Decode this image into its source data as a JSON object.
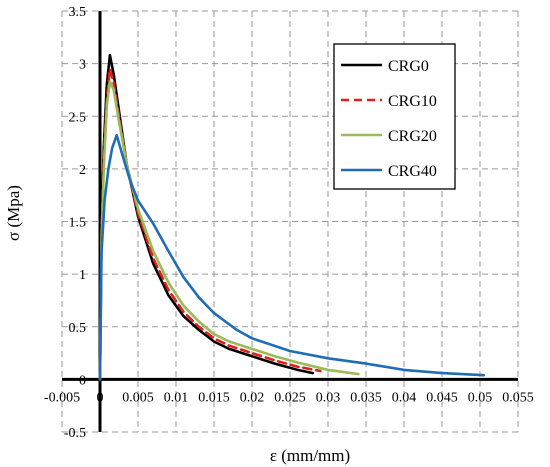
{
  "chart_data": {
    "type": "line",
    "xlabel": "ε (mm/mm)",
    "ylabel": "σ (Mpa)",
    "xlim": [
      -0.005,
      0.055
    ],
    "ylim": [
      -0.5,
      3.5
    ],
    "xticks": [
      -0.005,
      0,
      0.005,
      0.01,
      0.015,
      0.02,
      0.025,
      0.03,
      0.035,
      0.04,
      0.045,
      0.05,
      0.055
    ],
    "xtick_labels": [
      "-0.005",
      "0",
      "0.005",
      "0.01",
      "0.015",
      "0.02",
      "0.025",
      "0.03",
      "0.035",
      "0.04",
      "0.045",
      "0.05",
      "0.055"
    ],
    "yticks": [
      -0.5,
      0,
      0.5,
      1,
      1.5,
      2,
      2.5,
      3,
      3.5
    ],
    "ytick_labels": [
      "-0.5",
      "0",
      "0.5",
      "1",
      "1.5",
      "2",
      "2.5",
      "3",
      "3.5"
    ],
    "grid": true,
    "legend_position": "top-right",
    "series": [
      {
        "name": "CRG0",
        "color": "#000000",
        "dash": "solid",
        "points": [
          [
            0,
            0
          ],
          [
            0.0002,
            1.4
          ],
          [
            0.0005,
            2.2
          ],
          [
            0.0009,
            2.8
          ],
          [
            0.0013,
            3.08
          ],
          [
            0.0018,
            2.9
          ],
          [
            0.0025,
            2.55
          ],
          [
            0.0035,
            2.05
          ],
          [
            0.005,
            1.55
          ],
          [
            0.007,
            1.1
          ],
          [
            0.009,
            0.8
          ],
          [
            0.011,
            0.6
          ],
          [
            0.013,
            0.47
          ],
          [
            0.015,
            0.36
          ],
          [
            0.017,
            0.29
          ],
          [
            0.02,
            0.22
          ],
          [
            0.023,
            0.15
          ],
          [
            0.026,
            0.09
          ],
          [
            0.028,
            0.06
          ]
        ]
      },
      {
        "name": "CRG10",
        "color": "#e0201b",
        "dash": "dashed",
        "points": [
          [
            0,
            0
          ],
          [
            0.0002,
            1.35
          ],
          [
            0.0005,
            2.1
          ],
          [
            0.0009,
            2.65
          ],
          [
            0.0013,
            2.95
          ],
          [
            0.0018,
            2.82
          ],
          [
            0.0025,
            2.5
          ],
          [
            0.0035,
            2.05
          ],
          [
            0.005,
            1.58
          ],
          [
            0.007,
            1.15
          ],
          [
            0.009,
            0.85
          ],
          [
            0.011,
            0.64
          ],
          [
            0.013,
            0.5
          ],
          [
            0.015,
            0.39
          ],
          [
            0.017,
            0.32
          ],
          [
            0.02,
            0.25
          ],
          [
            0.023,
            0.18
          ],
          [
            0.026,
            0.12
          ],
          [
            0.029,
            0.08
          ]
        ]
      },
      {
        "name": "CRG20",
        "color": "#9bbb59",
        "dash": "solid",
        "points": [
          [
            0,
            0
          ],
          [
            0.0002,
            1.3
          ],
          [
            0.0005,
            2.0
          ],
          [
            0.0009,
            2.6
          ],
          [
            0.0013,
            2.83
          ],
          [
            0.0018,
            2.75
          ],
          [
            0.0025,
            2.45
          ],
          [
            0.0035,
            2.05
          ],
          [
            0.005,
            1.62
          ],
          [
            0.007,
            1.22
          ],
          [
            0.009,
            0.92
          ],
          [
            0.011,
            0.7
          ],
          [
            0.013,
            0.55
          ],
          [
            0.015,
            0.43
          ],
          [
            0.017,
            0.36
          ],
          [
            0.02,
            0.29
          ],
          [
            0.023,
            0.22
          ],
          [
            0.026,
            0.16
          ],
          [
            0.03,
            0.09
          ],
          [
            0.034,
            0.05
          ]
        ]
      },
      {
        "name": "CRG40",
        "color": "#1f6db6",
        "dash": "solid",
        "points": [
          [
            0,
            0
          ],
          [
            0.0002,
            1.2
          ],
          [
            0.0006,
            1.7
          ],
          [
            0.0011,
            2.0
          ],
          [
            0.0016,
            2.2
          ],
          [
            0.0022,
            2.32
          ],
          [
            0.003,
            2.12
          ],
          [
            0.004,
            1.88
          ],
          [
            0.005,
            1.7
          ],
          [
            0.007,
            1.48
          ],
          [
            0.009,
            1.22
          ],
          [
            0.011,
            0.97
          ],
          [
            0.013,
            0.78
          ],
          [
            0.015,
            0.63
          ],
          [
            0.018,
            0.47
          ],
          [
            0.02,
            0.39
          ],
          [
            0.025,
            0.27
          ],
          [
            0.03,
            0.2
          ],
          [
            0.035,
            0.15
          ],
          [
            0.04,
            0.09
          ],
          [
            0.045,
            0.06
          ],
          [
            0.0505,
            0.04
          ]
        ]
      }
    ]
  }
}
